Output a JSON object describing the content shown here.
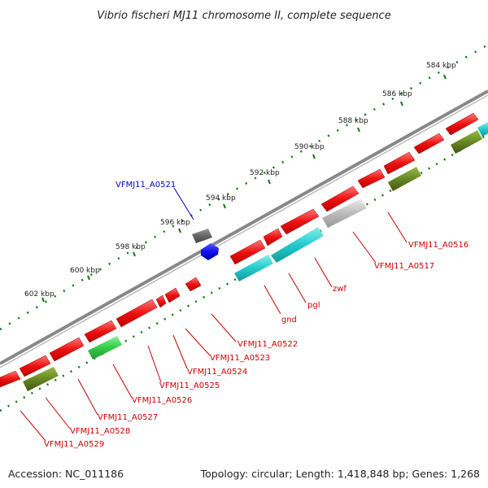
{
  "title": "Vibrio fischeri MJ11 chromosome II, complete sequence",
  "footer": {
    "accession": "Accession: NC_011186",
    "summary": "Topology: circular; Length: 1,418,848 bp; Genes: 1,268"
  },
  "colors": {
    "forward_gene": "#ee1111",
    "cds_cyan": "#22cccc",
    "cds_olive": "#668822",
    "cds_green": "#33cc44",
    "cds_gray": "#bbbbbb",
    "cds_dark": "#666666",
    "cds_blue": "#1111ee",
    "backbone": "#888888",
    "ticks": "#117711",
    "label_red": "#cc0000",
    "label_blue": "#0000cc"
  },
  "ruler": {
    "unit": "kbp",
    "ticks": [
      "584 kbp",
      "586 kbp",
      "588 kbp",
      "590 kbp",
      "592 kbp",
      "594 kbp",
      "596 kbp",
      "598 kbp",
      "600 kbp",
      "602 kbp"
    ]
  },
  "genes": [
    {
      "label": "VFMJ11_A0516",
      "color": "red"
    },
    {
      "label": "VFMJ11_A0517",
      "color": "red"
    },
    {
      "label": "zwf",
      "color": "red"
    },
    {
      "label": "pgl",
      "color": "red"
    },
    {
      "label": "gnd",
      "color": "red"
    },
    {
      "label": "VFMJ11_A0521",
      "color": "blue"
    },
    {
      "label": "VFMJ11_A0522",
      "color": "red"
    },
    {
      "label": "VFMJ11_A0523",
      "color": "red"
    },
    {
      "label": "VFMJ11_A0524",
      "color": "red"
    },
    {
      "label": "VFMJ11_A0525",
      "color": "red"
    },
    {
      "label": "VFMJ11_A0526",
      "color": "red"
    },
    {
      "label": "VFMJ11_A0527",
      "color": "red"
    },
    {
      "label": "VFMJ11_A0528",
      "color": "red"
    },
    {
      "label": "VFMJ11_A0529",
      "color": "red"
    }
  ]
}
